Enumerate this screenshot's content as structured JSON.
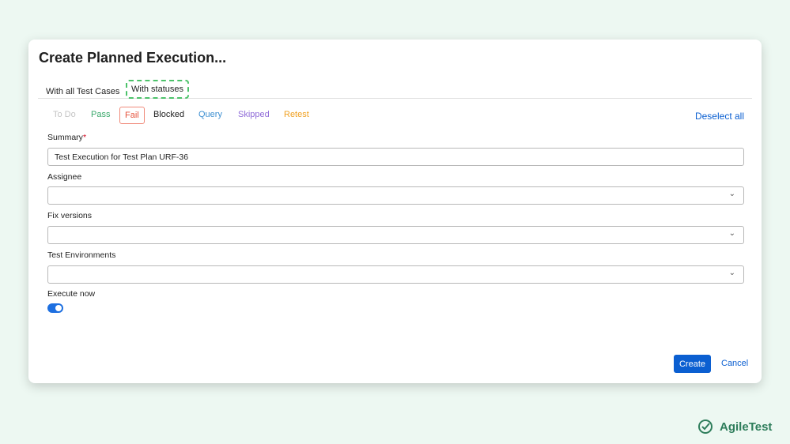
{
  "dialog": {
    "title": "Create Planned Execution...",
    "tabs": [
      {
        "label": "With all Test Cases"
      },
      {
        "label": "With statuses"
      }
    ],
    "statuses": [
      {
        "label": "To Do",
        "color": "#c4c4c4"
      },
      {
        "label": "Pass",
        "color": "#3aa86b"
      },
      {
        "label": "Fail",
        "color": "#e5533c"
      },
      {
        "label": "Blocked",
        "color": "#222222"
      },
      {
        "label": "Query",
        "color": "#3d8fd1"
      },
      {
        "label": "Skipped",
        "color": "#8f6ad8"
      },
      {
        "label": "Retest",
        "color": "#f0a020"
      }
    ],
    "deselect_all": "Deselect all",
    "summary": {
      "label": "Summary",
      "required": "*",
      "value": "Test Execution for Test Plan URF-36"
    },
    "assignee": {
      "label": "Assignee",
      "value": ""
    },
    "fix_versions": {
      "label": "Fix versions",
      "value": ""
    },
    "test_environments": {
      "label": "Test Environments",
      "value": ""
    },
    "execute_now": {
      "label": "Execute now",
      "on": true
    },
    "create": "Create",
    "cancel": "Cancel"
  },
  "brand": {
    "name_a": "Agile",
    "name_b": "Test"
  }
}
